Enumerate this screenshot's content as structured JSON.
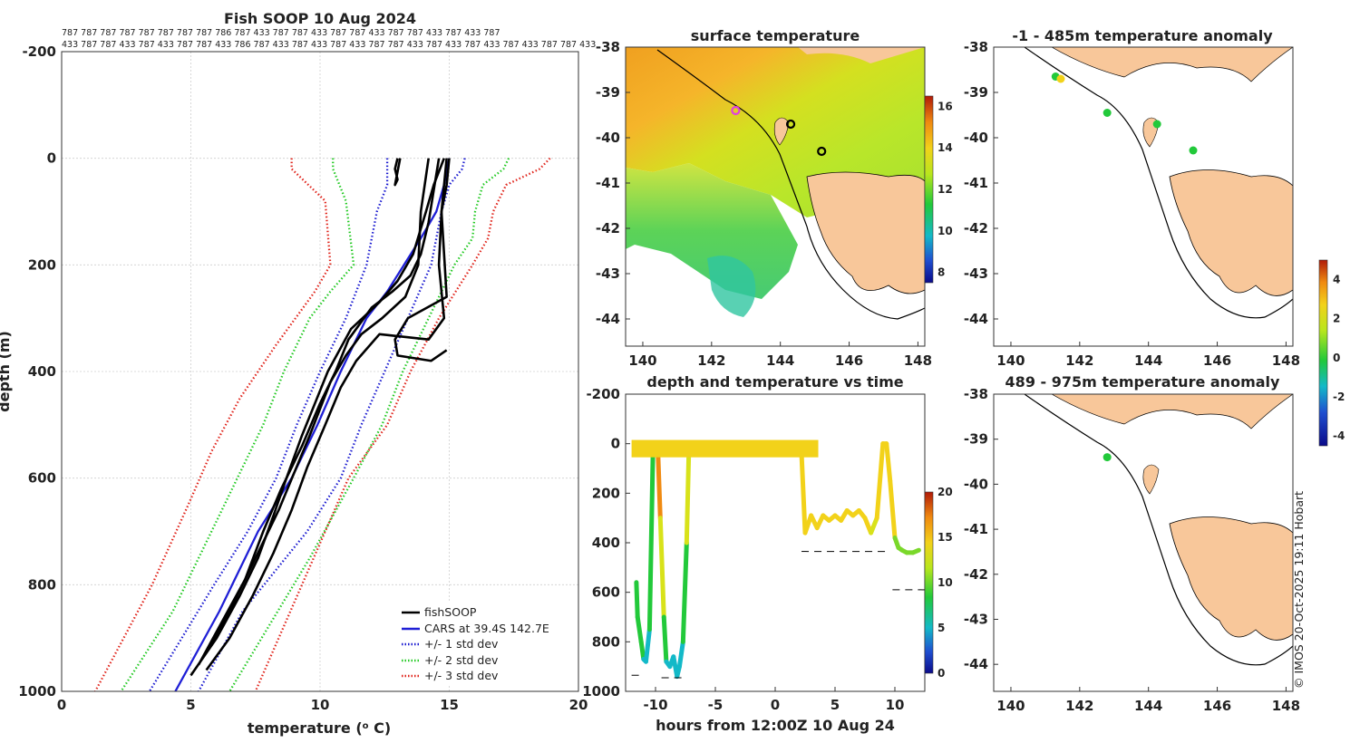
{
  "colors": {
    "fishsoop": "#000000",
    "cars": "#1f1fd6",
    "std1": "#1a1ad0",
    "std2": "#22c922",
    "std3": "#e0241b",
    "land": "#f8c79a",
    "ocean_sst": "#f0f0f0"
  },
  "profile_ids": {
    "row1": "787 787 787 787 787 787 787 787 786 787 433 787 787 433 787 787 433 787 787 433 787 433 787",
    "row2": "433 787 787 433 787 433 787 787 433 786 787 433 787 433 787 433 787 787 433 787 433 787 433 787 433 787 787 433"
  },
  "chart_data": [
    {
      "id": "profile",
      "type": "line",
      "title": "Fish SOOP 10 Aug 2024",
      "xlabel": "temperature (° C)",
      "ylabel": "depth (m)",
      "xlim": [
        0,
        20
      ],
      "ylim": [
        1000,
        -200
      ],
      "xticks": [
        "0",
        "5",
        "10",
        "15",
        "20"
      ],
      "yticks": [
        "-200",
        "0",
        "200",
        "400",
        "600",
        "800",
        "1000"
      ],
      "legend": [
        "fishSOOP",
        "CARS at 39.4S 142.7E",
        "+/- 1 std dev",
        "+/- 2 std dev",
        "+/- 3 std dev"
      ],
      "legend_position": "bottom-right",
      "cars": {
        "t": [
          15.0,
          14.8,
          14.5,
          13.9,
          12.6,
          11.8,
          10.8,
          9.9,
          8.9,
          7.6,
          6.1,
          4.4
        ],
        "d": [
          0,
          50,
          100,
          150,
          250,
          300,
          400,
          500,
          600,
          700,
          850,
          1000
        ]
      },
      "std1": {
        "lower": {
          "t": [
            12.6,
            12.6,
            12.2,
            11.8,
            11.0,
            10.0,
            9.1,
            8.3,
            7.2,
            5.9,
            3.4
          ],
          "d": [
            0,
            50,
            100,
            200,
            300,
            400,
            500,
            600,
            700,
            800,
            1000
          ]
        },
        "upper": {
          "t": [
            15.6,
            15.5,
            15.0,
            14.7,
            14.3,
            13.4,
            12.5,
            11.6,
            10.8,
            9.5,
            7.0,
            5.3
          ],
          "d": [
            0,
            20,
            50,
            100,
            200,
            300,
            400,
            500,
            600,
            700,
            850,
            1000
          ]
        }
      },
      "std2": {
        "lower": {
          "t": [
            10.5,
            10.5,
            11.0,
            11.3,
            10.4,
            9.6,
            8.6,
            7.8,
            6.8,
            5.8,
            4.3,
            2.3
          ],
          "d": [
            0,
            20,
            80,
            200,
            250,
            300,
            400,
            500,
            600,
            700,
            850,
            1000
          ]
        },
        "upper": {
          "t": [
            17.3,
            17.1,
            16.3,
            16.0,
            15.9,
            15.2,
            14.2,
            13.2,
            12.4,
            11.3,
            9.6,
            6.5
          ],
          "d": [
            0,
            20,
            50,
            100,
            150,
            200,
            300,
            400,
            500,
            600,
            750,
            1000
          ]
        }
      },
      "std3": {
        "lower": {
          "t": [
            8.9,
            8.9,
            10.2,
            10.4,
            9.8,
            8.3,
            6.9,
            5.8,
            4.9,
            3.5,
            1.3
          ],
          "d": [
            0,
            20,
            80,
            200,
            250,
            350,
            450,
            550,
            650,
            800,
            1000
          ]
        },
        "upper": {
          "t": [
            18.9,
            18.5,
            17.2,
            16.7,
            16.5,
            15.9,
            14.6,
            13.5,
            12.6,
            11.1,
            9.3,
            7.5
          ],
          "d": [
            0,
            20,
            50,
            100,
            150,
            200,
            300,
            400,
            500,
            600,
            800,
            1000
          ]
        }
      },
      "fishsoop_profiles": [
        {
          "t": [
            13.0,
            12.9,
            13.0,
            12.9,
            13.1
          ],
          "d": [
            0,
            20,
            40,
            50,
            0
          ]
        },
        {
          "t": [
            14.8,
            14.4,
            14.1,
            13.6,
            13.0,
            12.3,
            11.2,
            10.3,
            9.8,
            9.3,
            8.7,
            8.2,
            7.6,
            6.9,
            6.0,
            5.0
          ],
          "d": [
            0,
            50,
            100,
            180,
            230,
            270,
            320,
            400,
            460,
            520,
            600,
            670,
            750,
            820,
            900,
            970
          ]
        },
        {
          "t": [
            15.0,
            14.9,
            14.7,
            14.6,
            14.8,
            14.2,
            12.3,
            11.4,
            10.8,
            10.2,
            9.5,
            8.9,
            8.2,
            7.4,
            6.5,
            5.6
          ],
          "d": [
            0,
            50,
            100,
            200,
            300,
            340,
            330,
            380,
            430,
            500,
            580,
            660,
            740,
            820,
            900,
            960
          ]
        },
        {
          "t": [
            14.6,
            14.4,
            14.2,
            13.9,
            13.5,
            12.8,
            12.0,
            11.1,
            10.6,
            10.0,
            9.3,
            8.5,
            7.8,
            7.1,
            6.2,
            5.3
          ],
          "d": [
            0,
            60,
            120,
            180,
            220,
            250,
            280,
            340,
            400,
            460,
            540,
            620,
            700,
            790,
            870,
            950
          ]
        },
        {
          "t": [
            14.9,
            14.7,
            14.9,
            13.4,
            12.9,
            13.0,
            14.3,
            14.9
          ],
          "d": [
            0,
            100,
            260,
            300,
            340,
            370,
            380,
            360
          ]
        },
        {
          "t": [
            14.2,
            13.9,
            13.8,
            13.3,
            12.4,
            11.6,
            11.0,
            10.4,
            10.0,
            9.6,
            9.0,
            8.4,
            7.6,
            6.7,
            5.7
          ],
          "d": [
            0,
            100,
            200,
            260,
            300,
            330,
            370,
            420,
            470,
            520,
            590,
            660,
            740,
            830,
            920
          ]
        }
      ]
    },
    {
      "id": "sst_map",
      "type": "heatmap",
      "title": "surface temperature",
      "xticks": [
        "140",
        "142",
        "144",
        "146",
        "148"
      ],
      "yticks": [
        "-38",
        "-39",
        "-40",
        "-41",
        "-42",
        "-43",
        "-44"
      ],
      "xlim": [
        139.5,
        148.2
      ],
      "ylim": [
        -44.6,
        -38
      ],
      "colorbar": {
        "ticks": [
          "8",
          "10",
          "12",
          "14",
          "16"
        ],
        "range": [
          7.5,
          16.5
        ]
      },
      "profile_markers": [
        {
          "lon": 142.7,
          "lat": -39.4,
          "color": "#e040e0"
        },
        {
          "lon": 144.3,
          "lat": -39.7,
          "color": "#000000"
        },
        {
          "lon": 145.2,
          "lat": -40.3,
          "color": "#000000"
        }
      ]
    },
    {
      "id": "depth_time",
      "type": "scatter",
      "title": "depth and temperature vs time",
      "xlabel": "hours from 12:00Z 10 Aug 24",
      "xlim": [
        -12.5,
        12.5
      ],
      "ylim": [
        1000,
        -200
      ],
      "xticks": [
        "-10",
        "-5",
        "0",
        "5",
        "10"
      ],
      "yticks": [
        "-200",
        "0",
        "200",
        "400",
        "600",
        "800",
        "1000"
      ],
      "colorbar": {
        "ticks": [
          "0",
          "5",
          "10",
          "15",
          "20"
        ],
        "range": [
          0,
          20
        ]
      },
      "segments": [
        {
          "h": [
            -11.6,
            -11.5,
            -11.2,
            -11.0,
            -10.8,
            -10.5,
            -10.2,
            -10.0,
            -9.8
          ],
          "d": [
            560,
            700,
            800,
            870,
            880,
            750,
            0,
            0,
            30
          ],
          "temp": [
            9,
            10,
            8,
            7,
            7,
            9,
            17,
            17,
            17
          ]
        },
        {
          "h": [
            -9.8,
            -9.6,
            -9.3,
            -9.1,
            -8.8,
            -8.5,
            -8.2,
            -8.0,
            -7.7,
            -7.4,
            -7.2
          ],
          "d": [
            30,
            300,
            700,
            880,
            900,
            860,
            940,
            900,
            800,
            400,
            0
          ],
          "temp": [
            17,
            14,
            9,
            7,
            6,
            7,
            5,
            6,
            8,
            14,
            17
          ]
        },
        {
          "h": [
            -12.0,
            3.6
          ],
          "d": [
            0,
            0
          ],
          "temp": [
            16,
            16
          ],
          "band": true
        },
        {
          "h": [
            2.2,
            2.5,
            3.0,
            3.5,
            4.0,
            4.5,
            5.0,
            5.5,
            6.0,
            6.5,
            7.0,
            7.5,
            8.0,
            8.5,
            9.0,
            9.3,
            9.6,
            10.0,
            10.3,
            10.6,
            11.0,
            11.5,
            12.0
          ],
          "d": [
            40,
            360,
            290,
            340,
            290,
            310,
            290,
            310,
            270,
            290,
            270,
            300,
            360,
            300,
            0,
            0,
            150,
            380,
            420,
            430,
            440,
            440,
            430
          ],
          "temp": [
            16,
            15,
            15,
            15,
            15,
            15,
            15,
            15,
            15,
            15,
            15,
            15,
            14,
            15,
            16,
            16,
            15,
            12,
            11,
            11,
            11,
            11,
            11
          ]
        }
      ],
      "bottom_markers": [
        {
          "h": [
            -12.0,
            -11.0
          ],
          "d": 935
        },
        {
          "h": [
            -9.5,
            -7.5
          ],
          "d": 945
        },
        {
          "h": [
            2.2,
            9.3
          ],
          "d": 435
        },
        {
          "h": [
            9.8,
            12.5
          ],
          "d": 590
        }
      ]
    },
    {
      "id": "anom_shallow",
      "type": "scatter",
      "title": "-1 - 485m temperature anomaly",
      "xticks": [
        "140",
        "142",
        "144",
        "146",
        "148"
      ],
      "yticks": [
        "-38",
        "-39",
        "-40",
        "-41",
        "-42",
        "-43",
        "-44"
      ],
      "colorbar": {
        "ticks": [
          "-4",
          "-2",
          "0",
          "2",
          "4"
        ],
        "range": [
          -4.5,
          5
        ]
      },
      "points": [
        {
          "lon": 141.3,
          "lat": -38.65,
          "anom": 0.5
        },
        {
          "lon": 141.45,
          "lat": -38.7,
          "anom": 2.2
        },
        {
          "lon": 142.8,
          "lat": -39.45,
          "anom": 0.3
        },
        {
          "lon": 144.25,
          "lat": -39.7,
          "anom": -0.2
        },
        {
          "lon": 145.3,
          "lat": -40.28,
          "anom": -0.1
        }
      ]
    },
    {
      "id": "anom_deep",
      "type": "scatter",
      "title": "489 - 975m temperature anomaly",
      "xticks": [
        "140",
        "142",
        "144",
        "146",
        "148"
      ],
      "yticks": [
        "-38",
        "-39",
        "-40",
        "-41",
        "-42",
        "-43",
        "-44"
      ],
      "points": [
        {
          "lon": 142.8,
          "lat": -39.4,
          "anom": 0.3
        }
      ]
    }
  ],
  "credit": "© IMOS 20-Oct-2025 19:11 Hobart"
}
